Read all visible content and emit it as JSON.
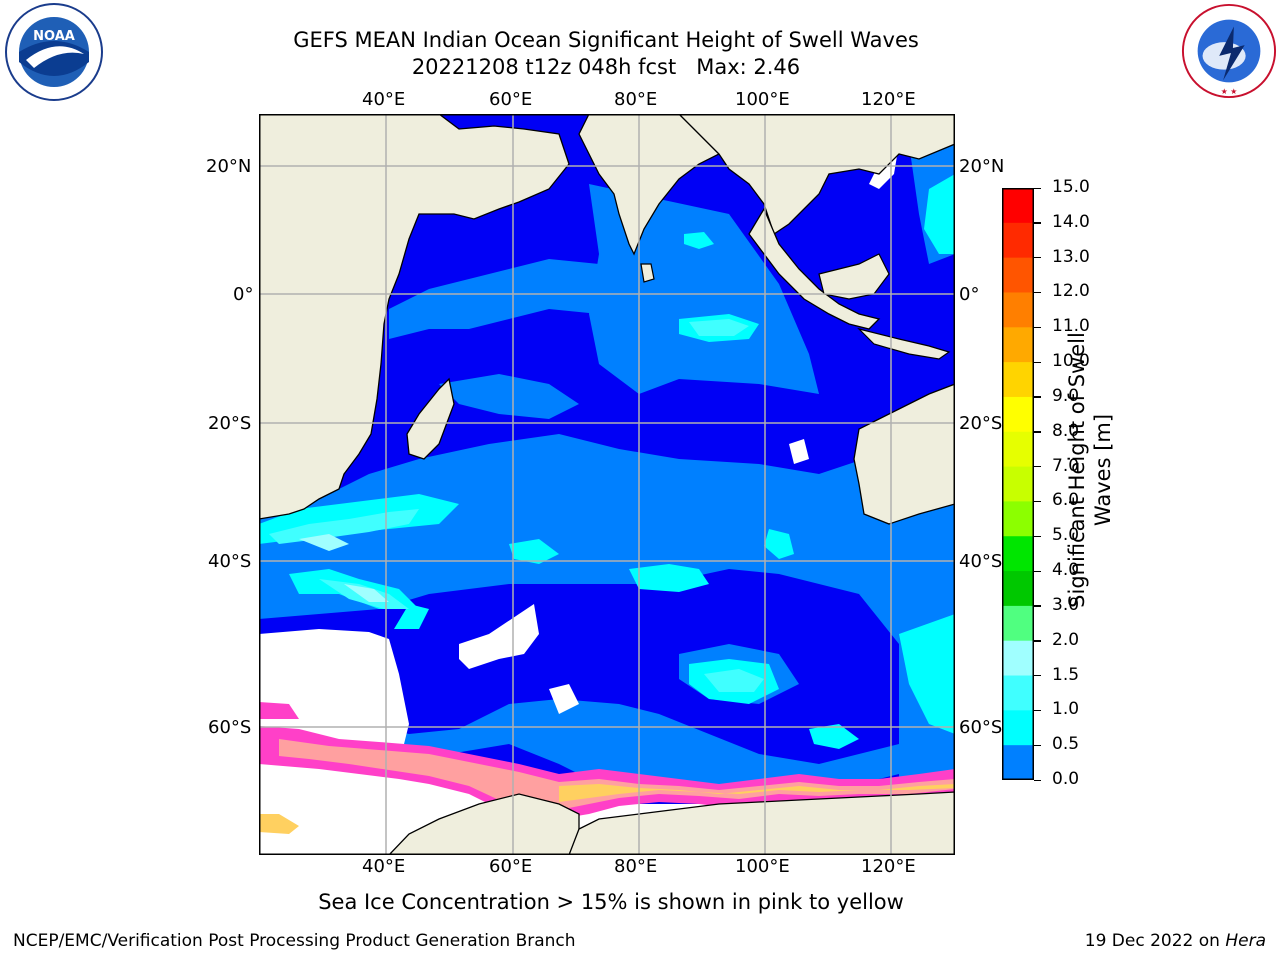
{
  "header": {
    "title_line1": "GEFS MEAN Indian Ocean Significant Height of Swell Waves",
    "title_line2": "20221208 t12z 048h fcst   Max: 2.46"
  },
  "logos": {
    "noaa_text": "NOAA",
    "noaa_ring_text": "NATIONAL OCEANIC AND ATMOSPHERIC ADMINISTRATION · U.S. DEPARTMENT OF COMMERCE",
    "nws_ring_text": "NATIONAL WEATHER SERVICE"
  },
  "map": {
    "lon_ticks": [
      "40°E",
      "60°E",
      "80°E",
      "100°E",
      "120°E"
    ],
    "lat_ticks": [
      "20°N",
      "0°",
      "20°S",
      "40°S",
      "60°S"
    ],
    "lon_range": [
      20,
      130
    ],
    "lat_range": [
      -74,
      28
    ],
    "colors": {
      "land": "#efeedd",
      "swell_0_0.5": "#0000f5",
      "swell_0.5_1.0": "#0080ff",
      "swell_1.0_1.5": "#00ffff",
      "swell_1.5_2.0": "#40ffff",
      "swell_2.0_3.0": "#a0ffff",
      "sea_ice": [
        "#ff40c8",
        "#ffa0a0",
        "#ffd060",
        "#ffff80"
      ],
      "no_data": "#ffffff",
      "grid": "#b0b0b0"
    }
  },
  "colorbar": {
    "title_line1": "Significant Height of Swell",
    "title_line2": "Waves [m]",
    "labels": [
      "15.0",
      "14.0",
      "13.0",
      "12.0",
      "11.0",
      "10.0",
      "9.0",
      "8.0",
      "7.0",
      "6.0",
      "5.0",
      "4.0",
      "3.0",
      "2.0",
      "1.5",
      "1.0",
      "0.5",
      "0.0"
    ],
    "colors": [
      "#ff0000",
      "#ff2a00",
      "#ff5500",
      "#ff7f00",
      "#ffa900",
      "#ffd400",
      "#ffff00",
      "#e6ff00",
      "#c8ff00",
      "#8cff00",
      "#00e600",
      "#00c800",
      "#50ff80",
      "#a0ffff",
      "#40ffff",
      "#00ffff",
      "#0080ff",
      "#0000f5"
    ]
  },
  "caption": "Sea Ice Concentration > 15% is shown in pink to yellow",
  "footer": {
    "left": "NCEP/EMC/Verification Post Processing Product Generation Branch",
    "right_prefix": "19 Dec 2022 on ",
    "right_italic": "Hera"
  }
}
